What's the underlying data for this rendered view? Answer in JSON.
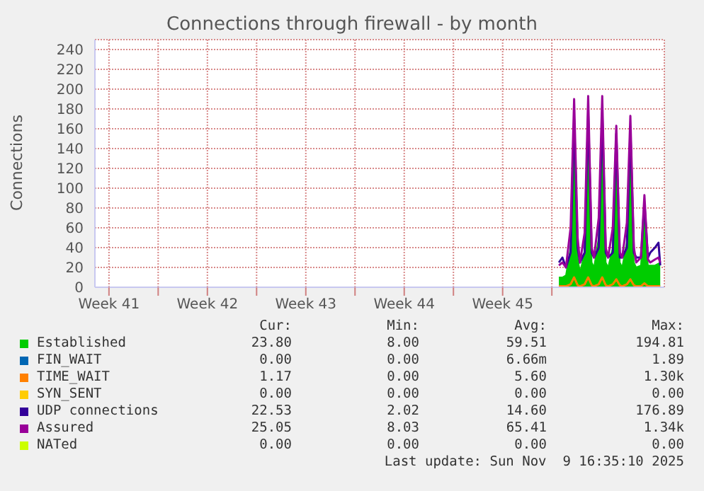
{
  "chart_data": {
    "type": "line",
    "title": "Connections through firewall - by month",
    "ylabel": "Connections",
    "x": [
      "2025-11-02T12:00",
      "2025-11-02T18:00",
      "2025-11-03T00:00",
      "2025-11-03T08:00",
      "2025-11-03T14:00",
      "2025-11-03T20:00",
      "2025-11-04T00:00",
      "2025-11-04T08:00",
      "2025-11-04T14:00",
      "2025-11-04T20:00",
      "2025-11-05T00:00",
      "2025-11-05T08:00",
      "2025-11-05T14:00",
      "2025-11-05T20:00",
      "2025-11-06T00:00",
      "2025-11-06T08:00",
      "2025-11-06T14:00",
      "2025-11-06T20:00",
      "2025-11-07T00:00",
      "2025-11-07T08:00",
      "2025-11-07T14:00",
      "2025-11-07T20:00",
      "2025-11-08T00:00",
      "2025-11-08T08:00",
      "2025-11-08T14:00",
      "2025-11-08T20:00",
      "2025-11-09T00:00",
      "2025-11-09T08:00",
      "2025-11-09T14:00",
      "2025-11-09T17:00"
    ],
    "series": [
      {
        "name": "Established",
        "type": "area",
        "color": "#00cc00",
        "values": [
          10,
          10,
          12,
          40,
          150,
          30,
          15,
          35,
          155,
          25,
          20,
          50,
          158,
          25,
          20,
          40,
          140,
          25,
          20,
          45,
          148,
          25,
          20,
          22,
          80,
          22,
          22,
          22,
          24,
          24
        ]
      },
      {
        "name": "FIN_WAIT",
        "color": "#0066b3",
        "values": [
          null,
          null,
          null,
          null,
          null,
          null,
          null,
          null,
          null,
          null,
          null,
          null,
          null,
          null,
          null,
          null,
          null,
          null,
          null,
          null,
          null,
          null,
          null,
          null,
          null,
          null,
          null,
          null,
          null,
          null
        ]
      },
      {
        "name": "TIME_WAIT",
        "color": "#ff8000",
        "values": [
          1,
          1,
          1,
          3,
          10,
          2,
          1,
          3,
          10,
          2,
          1,
          3,
          10,
          2,
          1,
          3,
          8,
          2,
          1,
          3,
          8,
          2,
          1,
          1,
          4,
          1,
          1,
          1,
          1,
          1
        ]
      },
      {
        "name": "SYN_SENT",
        "color": "#ffcc00",
        "values": [
          null,
          null,
          null,
          null,
          null,
          null,
          null,
          null,
          null,
          null,
          null,
          null,
          null,
          null,
          null,
          null,
          null,
          null,
          null,
          null,
          null,
          null,
          null,
          null,
          null,
          null,
          null,
          null,
          null,
          null
        ]
      },
      {
        "name": "UDP connections",
        "color": "#330099",
        "values": [
          25,
          30,
          20,
          35,
          170,
          40,
          25,
          35,
          175,
          35,
          30,
          40,
          176,
          35,
          30,
          35,
          155,
          30,
          30,
          40,
          160,
          35,
          30,
          30,
          85,
          30,
          35,
          40,
          45,
          22
        ]
      },
      {
        "name": "Assured",
        "color": "#990099",
        "values": [
          22,
          25,
          20,
          60,
          190,
          50,
          25,
          55,
          193,
          40,
          30,
          70,
          193,
          40,
          30,
          60,
          163,
          35,
          30,
          65,
          173,
          40,
          25,
          30,
          93,
          28,
          25,
          28,
          30,
          25
        ]
      },
      {
        "name": "NATed",
        "color": "#ccff00",
        "values": [
          null,
          null,
          null,
          null,
          null,
          null,
          null,
          null,
          null,
          null,
          null,
          null,
          null,
          null,
          null,
          null,
          null,
          null,
          null,
          null,
          null,
          null,
          null,
          null,
          null,
          null,
          null,
          null,
          null,
          null
        ]
      }
    ],
    "xlim": [
      "2025-09-30T12:00",
      "2025-11-10T00:00"
    ],
    "xticks": [
      {
        "value": "2025-10-01T12:00",
        "label": "Week 41"
      },
      {
        "value": "2025-10-05",
        "label": null
      },
      {
        "value": "2025-10-08T12:00",
        "label": "Week 42"
      },
      {
        "value": "2025-10-12",
        "label": null
      },
      {
        "value": "2025-10-15T12:00",
        "label": "Week 43"
      },
      {
        "value": "2025-10-19",
        "label": null
      },
      {
        "value": "2025-10-22T12:00",
        "label": "Week 44"
      },
      {
        "value": "2025-10-26",
        "label": null
      },
      {
        "value": "2025-10-29T12:00",
        "label": "Week 45"
      },
      {
        "value": "2025-11-02",
        "label": null
      }
    ],
    "ylim": [
      0,
      250
    ],
    "yticks": [
      0,
      20,
      40,
      60,
      80,
      100,
      120,
      140,
      160,
      180,
      200,
      220,
      240
    ],
    "grid": true,
    "legend": "bottom",
    "annotations": [
      "Cur:",
      "Min:",
      "Avg:",
      "Max:",
      "23.80",
      "8.00",
      "59.51",
      "194.81",
      "0.00",
      "0.00",
      "6.66m",
      "1.89",
      "1.17",
      "0.00",
      "5.60",
      "1.30k",
      "0.00",
      "0.00",
      "0.00",
      "0.00",
      "22.53",
      "2.02",
      "14.60",
      "176.89",
      "25.05",
      "8.03",
      "65.41",
      "1.34k",
      "0.00",
      "0.00",
      "0.00",
      "0.00",
      "Last update: Sun Nov  9 16:35:10 2025"
    ]
  }
}
